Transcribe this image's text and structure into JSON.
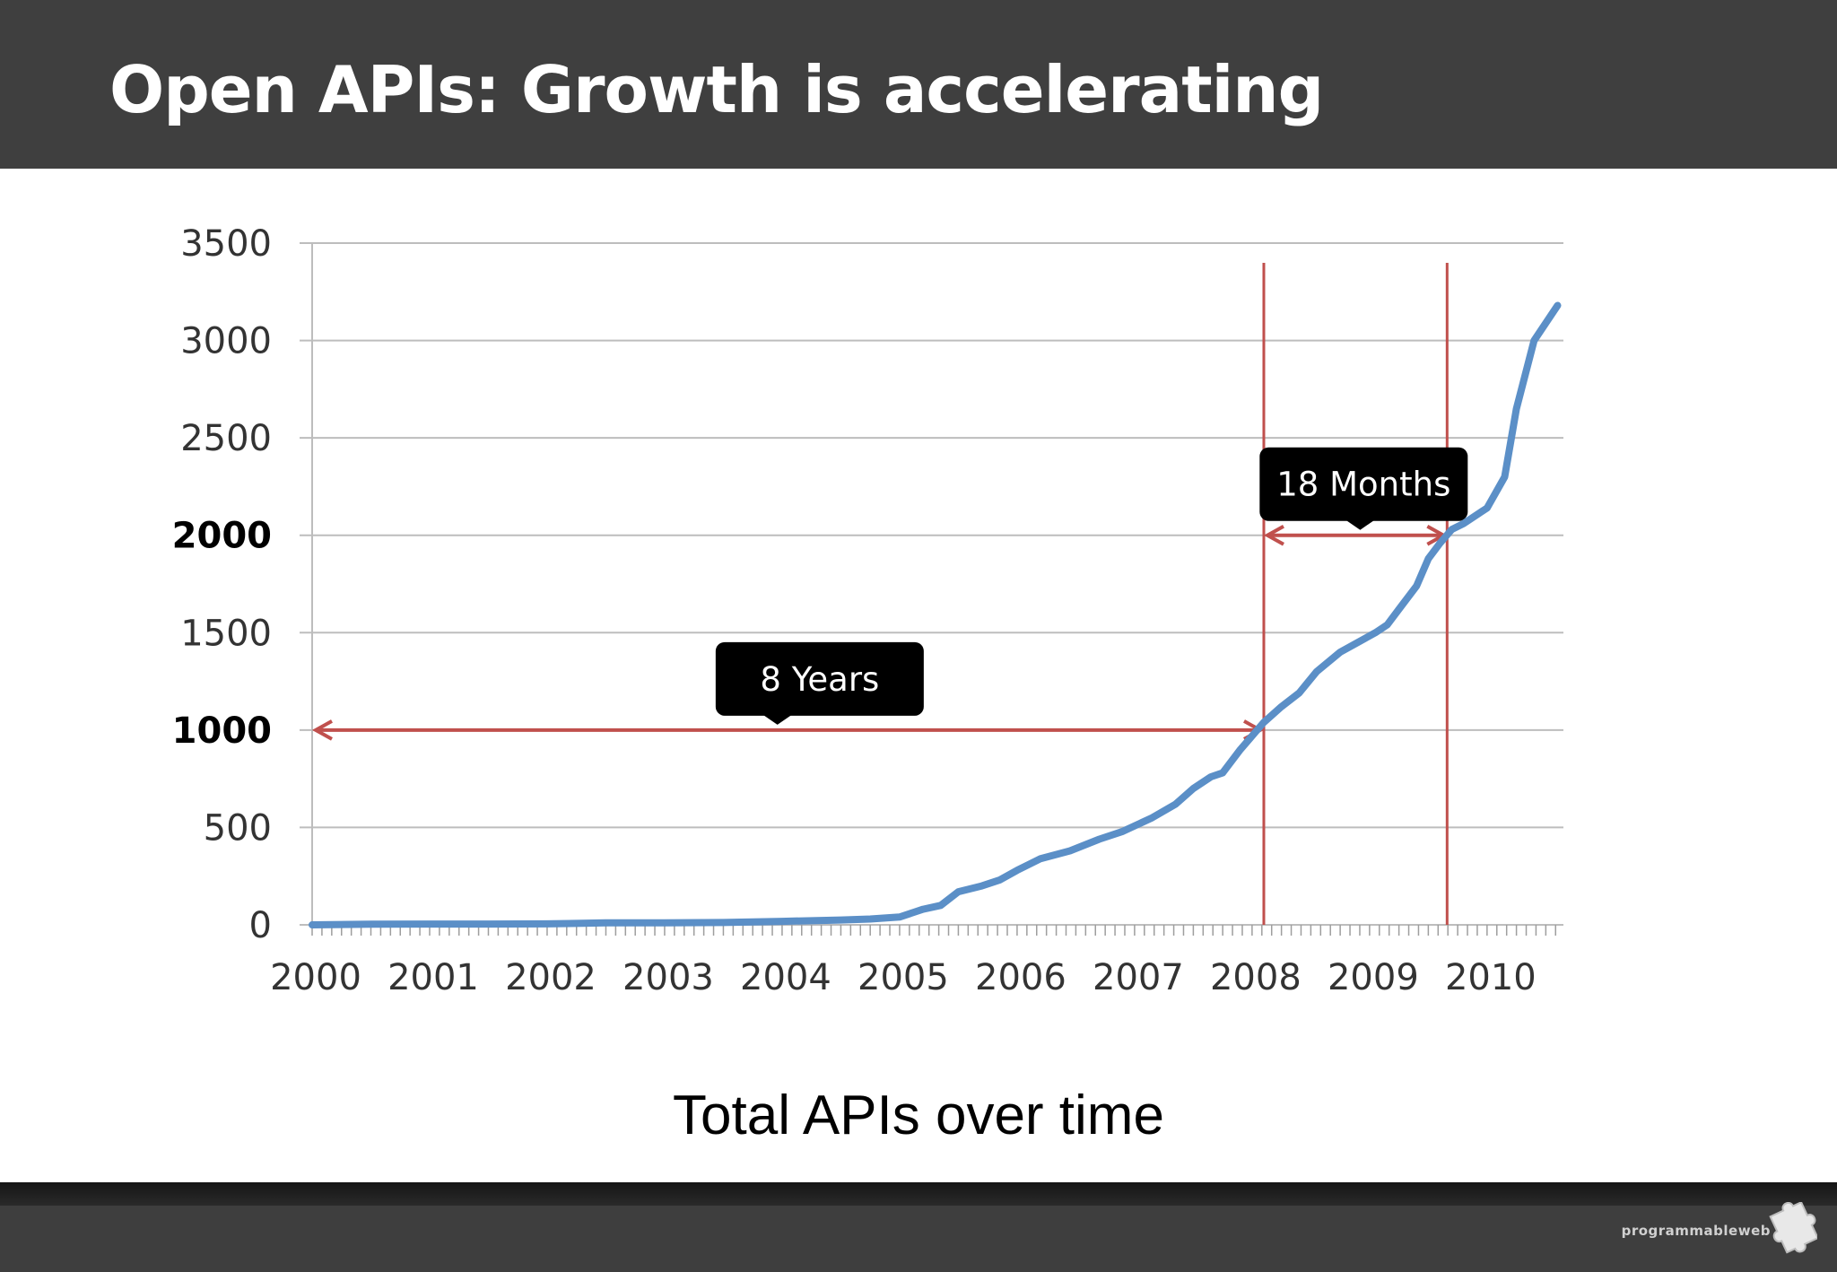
{
  "slide": {
    "title": "Open APIs: Growth is accelerating",
    "caption": "Total APIs over time",
    "logo_text": "programmableweb",
    "logo_icon": "puzzle-piece-icon",
    "colors": {
      "header_bg": "#3f3f3f",
      "footer_bg": "#3e3e3e",
      "series": "#5b8fc7",
      "annotation": "#c0504d",
      "callout_bg": "#000000"
    }
  },
  "chart_data": {
    "type": "line",
    "title": "",
    "xlabel": "",
    "ylabel": "",
    "xlim": [
      2000,
      2010.65
    ],
    "ylim": [
      0,
      3500
    ],
    "x_ticks": [
      "2000",
      "2001",
      "2002",
      "2003",
      "2004",
      "2005",
      "2006",
      "2007",
      "2008",
      "2009",
      "2010"
    ],
    "y_ticks": [
      "0",
      "500",
      "1000",
      "1500",
      "2000",
      "2500",
      "3000",
      "3500"
    ],
    "y_ticks_bold": [
      "1000",
      "2000"
    ],
    "grid": "horizontal",
    "series": [
      {
        "x": [
          2000.0,
          2000.5,
          2001.0,
          2001.5,
          2002.0,
          2002.3,
          2002.5,
          2003.0,
          2003.5,
          2004.0,
          2004.5,
          2004.75,
          2005.0,
          2005.2,
          2005.35,
          2005.5,
          2005.7,
          2005.85,
          2006.0,
          2006.2,
          2006.45,
          2006.7,
          2006.9,
          2007.15,
          2007.35,
          2007.5,
          2007.65,
          2007.75,
          2007.9,
          2008.1,
          2008.25,
          2008.4,
          2008.55,
          2008.75,
          2008.9,
          2009.05,
          2009.15,
          2009.25,
          2009.4,
          2009.5,
          2009.6,
          2009.7,
          2009.8,
          2010.0,
          2010.15,
          2010.25,
          2010.4,
          2010.6
        ],
        "y": [
          0,
          3,
          4,
          4,
          5,
          8,
          10,
          10,
          12,
          18,
          25,
          30,
          40,
          80,
          100,
          170,
          200,
          230,
          280,
          340,
          380,
          440,
          480,
          550,
          620,
          700,
          760,
          780,
          900,
          1040,
          1120,
          1190,
          1300,
          1400,
          1450,
          1500,
          1540,
          1620,
          1740,
          1880,
          1960,
          2030,
          2060,
          2140,
          2300,
          2650,
          3000,
          3180
        ]
      }
    ],
    "annotations": {
      "vertical_lines_x": [
        2008.1,
        2009.66
      ],
      "spans": [
        {
          "label": "8 Years",
          "x_start": 2000.0,
          "x_end": 2008.1,
          "y": 1000
        },
        {
          "label": "18 Months",
          "x_start": 2008.1,
          "x_end": 2009.66,
          "y": 2000
        }
      ]
    }
  }
}
